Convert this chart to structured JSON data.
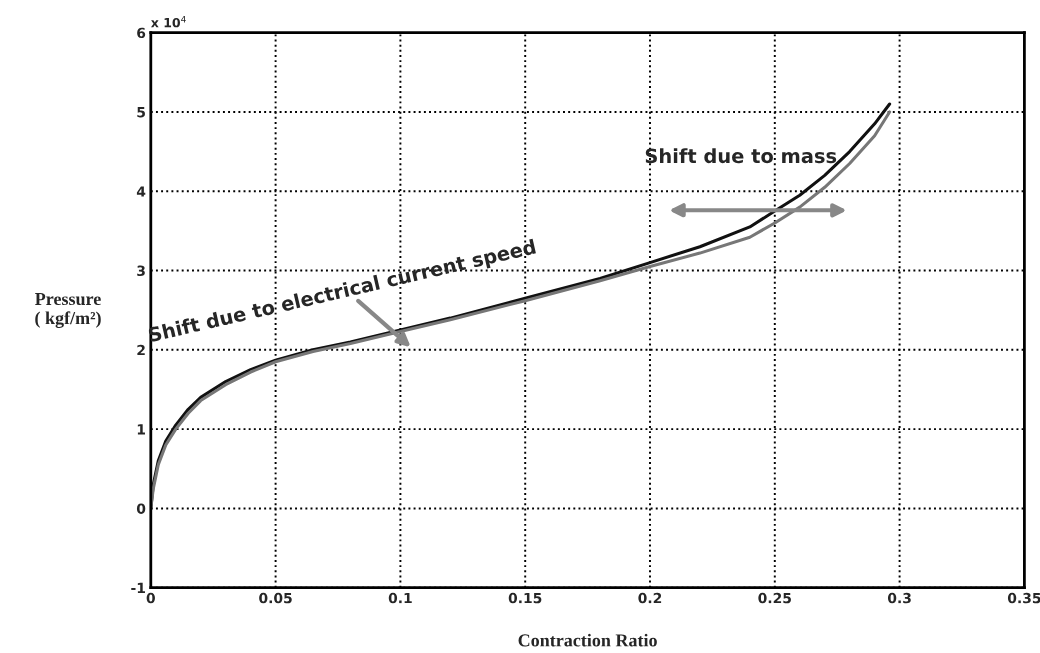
{
  "chart_data": {
    "type": "line",
    "xlabel": "Contraction Ratio",
    "ylabel": "Pressure\n( kgf/m²)",
    "xlim": [
      0,
      0.35
    ],
    "xticks": [
      0,
      0.05,
      0.1,
      0.15,
      0.2,
      0.25,
      0.3,
      0.35
    ],
    "ylim": [
      -1,
      6
    ],
    "yticks": [
      -1,
      0,
      1,
      2,
      3,
      4,
      5,
      6
    ],
    "grid": true,
    "line_style": "solid",
    "marker": "none",
    "annotations": [
      "x 10$^{4}$",
      "Shift due to mass",
      "Shift due to electrical current speed"
    ],
    "series": [
      {
        "color": "#111111",
        "x": [
          0,
          0.001,
          0.003,
          0.006,
          0.01,
          0.015,
          0.02,
          0.03,
          0.04,
          0.05,
          0.065,
          0.08,
          0.1,
          0.12,
          0.15,
          0.18,
          0.2,
          0.22,
          0.24,
          0.25,
          0.26,
          0.27,
          0.28,
          0.29,
          0.296
        ],
        "values": [
          0,
          0.3,
          0.6,
          0.85,
          1.05,
          1.25,
          1.4,
          1.6,
          1.75,
          1.87,
          2.0,
          2.1,
          2.25,
          2.4,
          2.65,
          2.9,
          3.1,
          3.3,
          3.55,
          3.75,
          3.95,
          4.2,
          4.5,
          4.85,
          5.1
        ]
      },
      {
        "color": "#777777",
        "x": [
          0,
          0.001,
          0.003,
          0.006,
          0.01,
          0.015,
          0.02,
          0.03,
          0.04,
          0.05,
          0.065,
          0.08,
          0.1,
          0.12,
          0.15,
          0.18,
          0.2,
          0.22,
          0.24,
          0.25,
          0.26,
          0.27,
          0.28,
          0.29,
          0.296
        ],
        "values": [
          0,
          0.25,
          0.55,
          0.8,
          1.0,
          1.2,
          1.36,
          1.56,
          1.72,
          1.85,
          1.98,
          2.08,
          2.23,
          2.38,
          2.62,
          2.87,
          3.05,
          3.22,
          3.42,
          3.6,
          3.8,
          4.05,
          4.35,
          4.7,
          5.0
        ]
      }
    ]
  }
}
